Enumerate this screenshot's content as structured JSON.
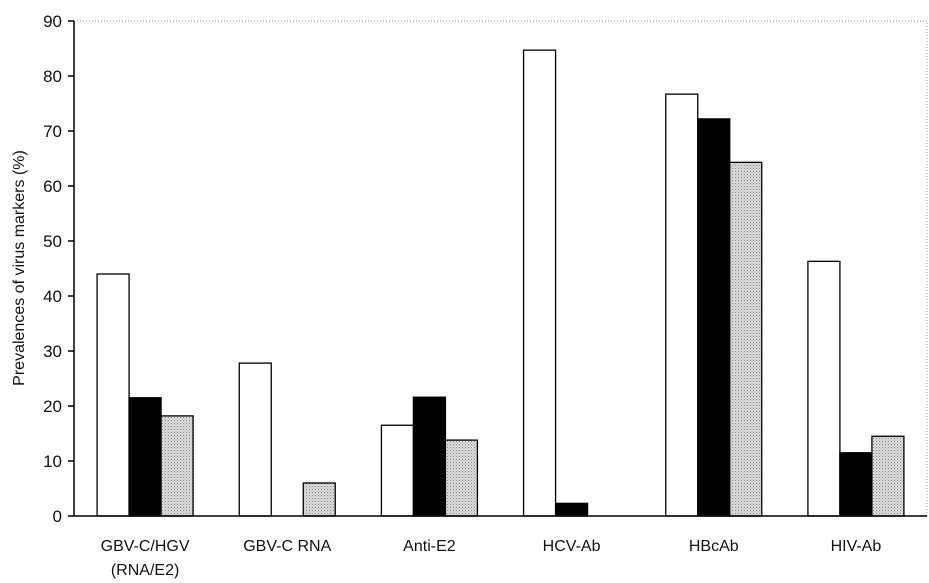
{
  "chart_data": {
    "type": "bar",
    "title": "",
    "xlabel": "",
    "ylabel": "Prevalences of virus markers (%)",
    "ylim": [
      0,
      90
    ],
    "yticks": [
      0,
      10,
      20,
      30,
      40,
      50,
      60,
      70,
      80,
      90
    ],
    "grid": false,
    "legend": "none",
    "categories": [
      [
        "GBV-C/HGV",
        "(RNA/E2)"
      ],
      [
        "GBV-C RNA"
      ],
      [
        "Anti-E2"
      ],
      [
        "HCV-Ab"
      ],
      [
        "HBcAb"
      ],
      [
        "HIV-Ab"
      ]
    ],
    "series": [
      {
        "values": [
          44.0,
          27.8,
          16.5,
          84.7,
          76.7,
          46.3
        ],
        "color": "#ffffff"
      },
      {
        "values": [
          21.5,
          0,
          21.6,
          2.3,
          72.2,
          11.5
        ],
        "color": "#000000"
      },
      {
        "values": [
          18.2,
          6.0,
          13.8,
          0,
          64.3,
          14.5
        ],
        "color": "#c8c8c8"
      }
    ]
  }
}
